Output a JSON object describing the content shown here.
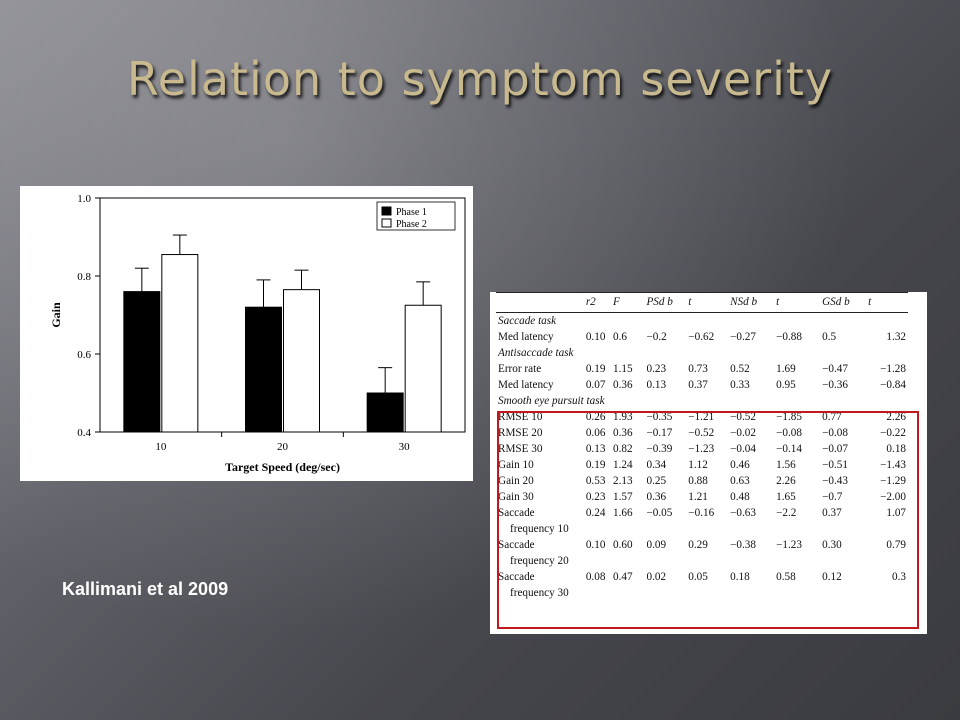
{
  "slide": {
    "title": "Relation to symptom severity",
    "citation": "Kallimani et al 2009"
  },
  "chart_data": {
    "type": "bar",
    "title": "",
    "xlabel": "Target Speed (deg/sec)",
    "ylabel": "Gain",
    "categories": [
      "10",
      "20",
      "30"
    ],
    "ylim": [
      0.4,
      1.0
    ],
    "yticks": [
      "0.4",
      "0.6",
      "0.8",
      "1.0"
    ],
    "legend_position": "top-right",
    "series": [
      {
        "name": "Phase 1",
        "color": "#000000",
        "values": [
          0.76,
          0.72,
          0.5
        ],
        "errors": [
          0.06,
          0.07,
          0.065
        ]
      },
      {
        "name": "Phase 2",
        "color": "#ffffff",
        "values": [
          0.855,
          0.765,
          0.725
        ],
        "errors": [
          0.05,
          0.05,
          0.06
        ]
      }
    ]
  },
  "table": {
    "headers": [
      "",
      "r2",
      "F",
      "PSd b",
      "t",
      "NSd b",
      "t",
      "GSd b",
      "t"
    ],
    "rows": [
      {
        "kind": "section",
        "label": "Saccade task"
      },
      {
        "kind": "data",
        "label": "Med latency",
        "values": [
          "0.10",
          "0.6",
          "−0.2",
          "−0.62",
          "−0.27",
          "−0.88",
          "0.5",
          "1.32"
        ]
      },
      {
        "kind": "section",
        "label": "Antisaccade task"
      },
      {
        "kind": "data",
        "label": "Error rate",
        "values": [
          "0.19",
          "1.15",
          "0.23",
          "0.73",
          "0.52",
          "1.69",
          "−0.47",
          "−1.28"
        ]
      },
      {
        "kind": "data",
        "label": "Med latency",
        "values": [
          "0.07",
          "0.36",
          "0.13",
          "0.37",
          "0.33",
          "0.95",
          "−0.36",
          "−0.84"
        ]
      },
      {
        "kind": "section",
        "label": "Smooth eye pursuit task"
      },
      {
        "kind": "data",
        "label": "RMSE 10",
        "values": [
          "0.26",
          "1.93",
          "−0.35",
          "−1.21",
          "−0.52",
          "−1.85",
          "0.77",
          "2.26"
        ]
      },
      {
        "kind": "data",
        "label": "RMSE 20",
        "values": [
          "0.06",
          "0.36",
          "−0.17",
          "−0.52",
          "−0.02",
          "−0.08",
          "−0.08",
          "−0.22"
        ]
      },
      {
        "kind": "data",
        "label": "RMSE 30",
        "values": [
          "0.13",
          "0.82",
          "−0.39",
          "−1.23",
          "−0.04",
          "−0.14",
          "−0.07",
          "0.18"
        ]
      },
      {
        "kind": "data",
        "label": "Gain 10",
        "values": [
          "0.19",
          "1.24",
          "0.34",
          "1.12",
          "0.46",
          "1.56",
          "−0.51",
          "−1.43"
        ]
      },
      {
        "kind": "data",
        "label": "Gain 20",
        "values": [
          "0.53",
          "2.13",
          "0.25",
          "0.88",
          "0.63",
          "2.26",
          "−0.43",
          "−1.29"
        ]
      },
      {
        "kind": "data",
        "label": "Gain 30",
        "values": [
          "0.23",
          "1.57",
          "0.36",
          "1.21",
          "0.48",
          "1.65",
          "−0.7",
          "−2.00"
        ]
      },
      {
        "kind": "data",
        "label": "Saccade",
        "values": [
          "0.24",
          "1.66",
          "−0.05",
          "−0.16",
          "−0.63",
          "−2.2",
          "0.37",
          "1.07"
        ]
      },
      {
        "kind": "cont",
        "label": "frequency 10"
      },
      {
        "kind": "data",
        "label": "Saccade",
        "values": [
          "0.10",
          "0.60",
          "0.09",
          "0.29",
          "−0.38",
          "−1.23",
          "0.30",
          "0.79"
        ]
      },
      {
        "kind": "cont",
        "label": "frequency 20"
      },
      {
        "kind": "data",
        "label": "Saccade",
        "values": [
          "0.08",
          "0.47",
          "0.02",
          "0.05",
          "0.18",
          "0.58",
          "0.12",
          "0.3"
        ]
      },
      {
        "kind": "cont",
        "label": "frequency 30"
      }
    ]
  }
}
